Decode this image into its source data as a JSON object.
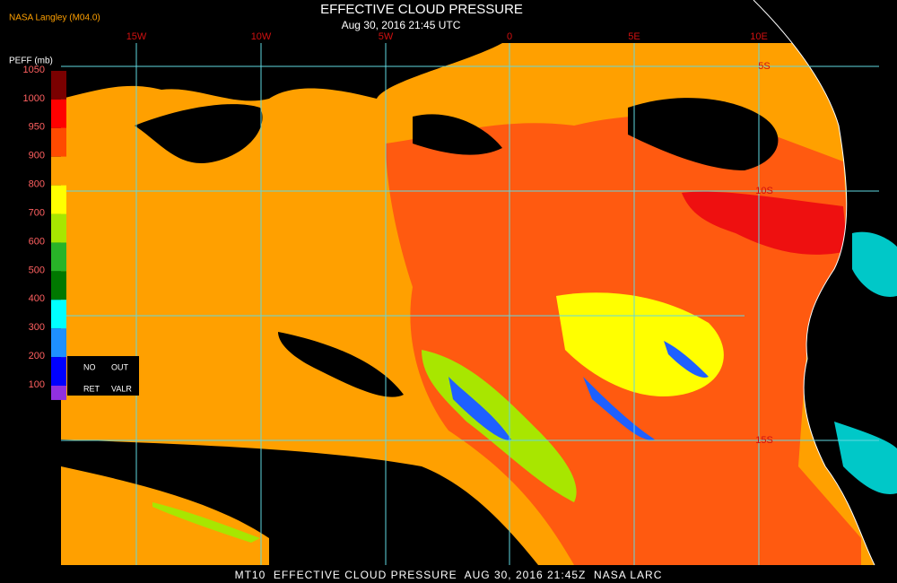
{
  "header": {
    "source": "NASA Langley (M04.0)",
    "title": "EFFECTIVE CLOUD PRESSURE",
    "subtitle": "Aug 30, 2016 21:45 UTC"
  },
  "map": {
    "longitude_labels": [
      "15W",
      "10W",
      "5W",
      "0",
      "5E",
      "10E"
    ],
    "latitude_labels": [
      "5S",
      "10S",
      "15S"
    ]
  },
  "legend": {
    "title": "PEFF (mb)",
    "labels": [
      "1050",
      "1000",
      "950",
      "900",
      "800",
      "700",
      "600",
      "500",
      "400",
      "300",
      "200",
      "100"
    ],
    "colors": [
      "#7a0000",
      "#ff0000",
      "#ff4a00",
      "#ffa000",
      "#ffff00",
      "#a8e600",
      "#28b428",
      "#007800",
      "#00ffff",
      "#1e90ff",
      "#0000ff",
      "#9030e0"
    ],
    "notes": [
      "NO",
      "OUT",
      "RET",
      "VALR"
    ]
  },
  "footer": {
    "text": "MT10  EFFECTIVE CLOUD PRESSURE  AUG 30, 2016 21:45Z  NASA LARC"
  }
}
